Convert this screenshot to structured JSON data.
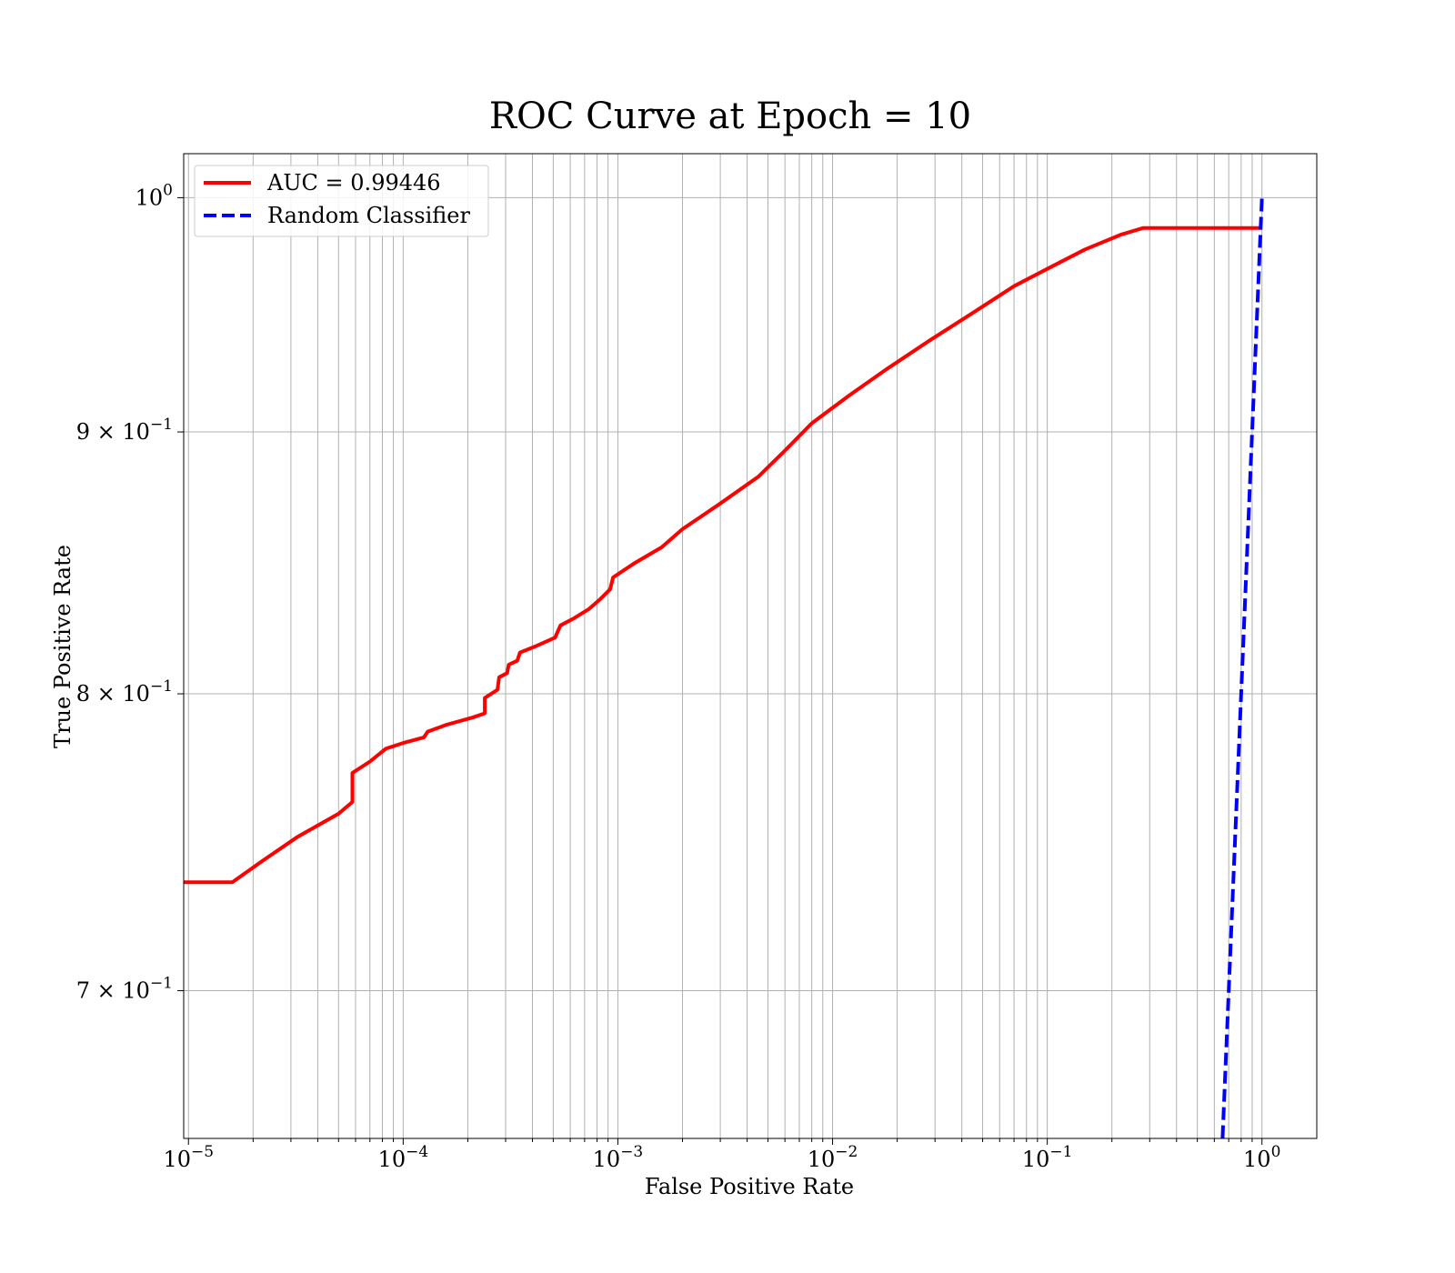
{
  "chart_data": {
    "type": "line",
    "title": "ROC Curve at Epoch = 10",
    "xlabel": "False Positive Rate",
    "ylabel": "True Positive Rate",
    "xscale": "log",
    "yscale": "log",
    "xlim": [
      9.5e-06,
      1.8
    ],
    "ylim": [
      0.655,
      1.02
    ],
    "grid": "on (major and minor)",
    "legend_placement": "top-left",
    "x_ticks": [
      {
        "base": "10",
        "exp": "−5",
        "value": 1e-05
      },
      {
        "base": "10",
        "exp": "−4",
        "value": 0.0001
      },
      {
        "base": "10",
        "exp": "−3",
        "value": 0.001
      },
      {
        "base": "10",
        "exp": "−2",
        "value": 0.01
      },
      {
        "base": "10",
        "exp": "−1",
        "value": 0.1
      },
      {
        "base": "10",
        "exp": "0",
        "value": 1
      }
    ],
    "y_ticks": [
      {
        "mantissa": "",
        "base": "10",
        "exp": "0",
        "value": 1.0
      },
      {
        "mantissa": "9 × ",
        "base": "10",
        "exp": "−1",
        "value": 0.9
      },
      {
        "mantissa": "8 × ",
        "base": "10",
        "exp": "−1",
        "value": 0.8
      },
      {
        "mantissa": "7 × ",
        "base": "10",
        "exp": "−1",
        "value": 0.7
      }
    ],
    "series": [
      {
        "name": "AUC = 0.99446",
        "color": "#ff0000",
        "style": "solid",
        "x": [
          9.5e-06,
          1.6e-05,
          2.2e-05,
          3.2e-05,
          5e-05,
          5.8e-05,
          5.8e-05,
          7e-05,
          8.3e-05,
          0.0001,
          0.000125,
          0.00013,
          0.00016,
          0.00021,
          0.00024,
          0.00024,
          0.000275,
          0.00028,
          0.000305,
          0.00031,
          0.00034,
          0.00035,
          0.00042,
          0.00051,
          0.00054,
          0.00062,
          0.00073,
          0.00082,
          0.00092,
          0.00095,
          0.0012,
          0.0016,
          0.002,
          0.003,
          0.0045,
          0.006,
          0.008,
          0.012,
          0.018,
          0.028,
          0.045,
          0.07,
          0.1,
          0.15,
          0.22,
          0.28,
          1.0
        ],
        "y": [
          0.735,
          0.735,
          0.742,
          0.75,
          0.758,
          0.762,
          0.772,
          0.776,
          0.7805,
          0.7825,
          0.7845,
          0.7865,
          0.789,
          0.7915,
          0.793,
          0.7985,
          0.8015,
          0.806,
          0.8075,
          0.8105,
          0.812,
          0.815,
          0.8175,
          0.8205,
          0.825,
          0.8275,
          0.831,
          0.8345,
          0.8385,
          0.843,
          0.8485,
          0.8545,
          0.8615,
          0.8715,
          0.882,
          0.8925,
          0.9035,
          0.915,
          0.926,
          0.9375,
          0.9495,
          0.961,
          0.9685,
          0.977,
          0.9835,
          0.9865,
          0.9865
        ]
      },
      {
        "name": "Random Classifier",
        "color": "#0000ff",
        "style": "dashed",
        "x": [
          0.6551,
          1.0
        ],
        "y": [
          0.6551,
          1.0
        ]
      }
    ]
  }
}
